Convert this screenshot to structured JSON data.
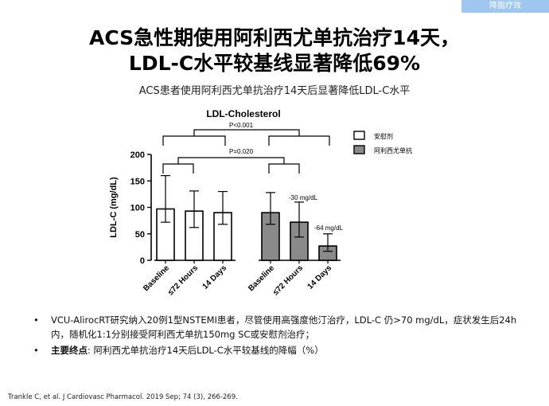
{
  "corner_tag": "降脂疗效",
  "title_line1": "ACS急性期使用阿利西尤单抗治疗14天，",
  "title_line2": "LDL-C水平较基线显著降低69%",
  "subtitle": "ACS患者使用阿利西尤单抗治疗14天后显著降低LDL-C水平",
  "chart_data": {
    "type": "bar",
    "title": "LDL-Cholesterol",
    "ylabel": "LDL-C (mg/dL)",
    "ylim": [
      0,
      200
    ],
    "yticks": [
      0,
      50,
      100,
      150,
      200
    ],
    "categories": [
      "Baseline",
      "≤72 Hours",
      "14 Days"
    ],
    "series": [
      {
        "name": "安慰剂",
        "color": "#ffffff",
        "values": [
          97,
          93,
          90
        ],
        "err_low": [
          72,
          62,
          68
        ],
        "err_high": [
          160,
          131,
          130
        ]
      },
      {
        "name": "阿利西尤单抗",
        "color": "#8a8a8a",
        "values": [
          90,
          72,
          27
        ],
        "err_low": [
          68,
          44,
          17
        ],
        "err_high": [
          128,
          110,
          50
        ]
      }
    ],
    "annotations": [
      {
        "text": "P<0.001",
        "compare": "安慰剂 vs 阿利西尤单抗"
      },
      {
        "text": "P=0.020",
        "compare": "安慰剂 vs 阿利西尤单抗"
      },
      {
        "text": "-30 mg/dL",
        "series": "阿利西尤单抗",
        "category": "≤72 Hours"
      },
      {
        "text": "-64 mg/dL",
        "series": "阿利西尤单抗",
        "category": "14 Days"
      }
    ],
    "legend_position": "top-right"
  },
  "bullets": [
    {
      "bold": "",
      "text": "VCU-AlirocRT研究纳入20例1型NSTEMI患者，尽管使用高强度他汀治疗，LDL-C 仍>70 mg/dL，症状发生后24h内，随机化1:1分别接受阿利西尤单抗150mg SC或安慰剂治疗；"
    },
    {
      "bold": "主要终点",
      "text": ": 阿利西尤单抗治疗14天后LDL-C水平较基线的降幅（%）"
    }
  ],
  "reference": "Trankle C, et al. J Cardiovasc Pharmacol. 2019 Sep; 74 (3), 266-269."
}
